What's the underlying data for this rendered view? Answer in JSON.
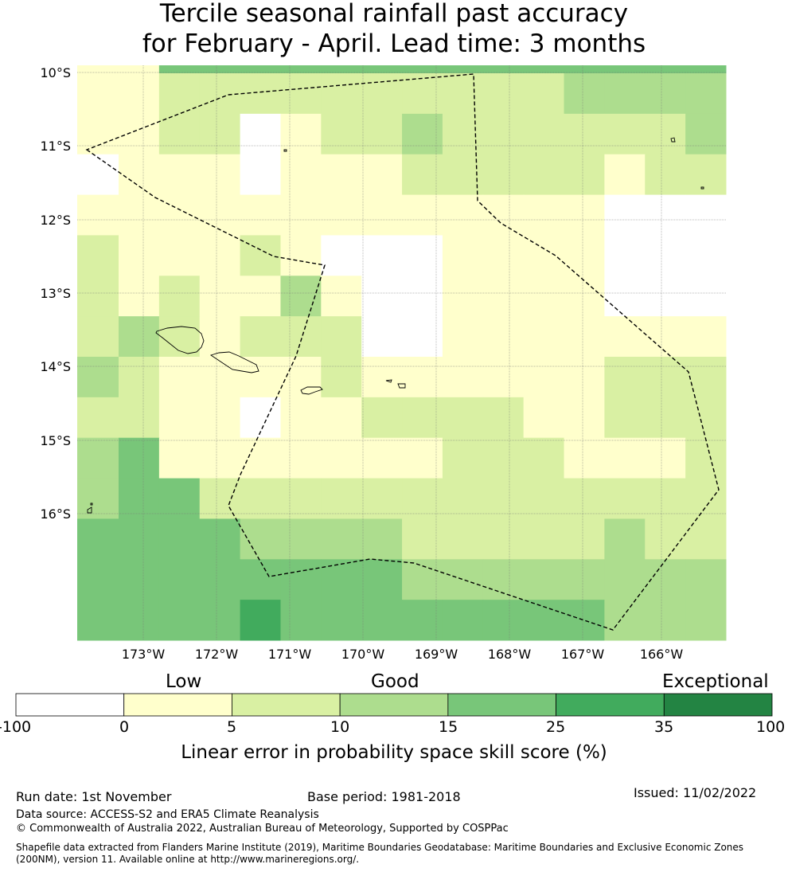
{
  "title": {
    "line1": "Tercile seasonal rainfall past accuracy",
    "line2": "for February - April. Lead time: 3 months"
  },
  "map": {
    "lat_labels": [
      "10°S",
      "11°S",
      "12°S",
      "13°S",
      "14°S",
      "15°S",
      "16°S"
    ],
    "lon_labels": [
      "173°W",
      "172°W",
      "171°W",
      "170°W",
      "169°W",
      "168°W",
      "167°W",
      "166°W"
    ],
    "grid_rows": [
      [
        1,
        1,
        4,
        4,
        4,
        4,
        4,
        4,
        4,
        4,
        4,
        4,
        4,
        4,
        4,
        4
      ],
      [
        1,
        1,
        2,
        2,
        2,
        2,
        2,
        2,
        2,
        2,
        2,
        2,
        3,
        3,
        3,
        3
      ],
      [
        1,
        1,
        2,
        2,
        0,
        1,
        2,
        2,
        3,
        2,
        2,
        2,
        2,
        2,
        2,
        3
      ],
      [
        0,
        1,
        1,
        1,
        0,
        1,
        1,
        1,
        2,
        2,
        2,
        2,
        2,
        1,
        2,
        2
      ],
      [
        1,
        1,
        1,
        1,
        1,
        1,
        1,
        1,
        1,
        1,
        1,
        1,
        1,
        0,
        0,
        0
      ],
      [
        2,
        1,
        1,
        1,
        2,
        1,
        0,
        0,
        0,
        1,
        1,
        1,
        1,
        0,
        0,
        0
      ],
      [
        2,
        1,
        2,
        1,
        1,
        3,
        1,
        0,
        0,
        1,
        1,
        1,
        1,
        0,
        0,
        0
      ],
      [
        2,
        3,
        2,
        1,
        2,
        2,
        2,
        0,
        0,
        1,
        1,
        1,
        1,
        1,
        1,
        1
      ],
      [
        3,
        2,
        1,
        1,
        1,
        1,
        2,
        1,
        1,
        1,
        1,
        1,
        1,
        2,
        2,
        2
      ],
      [
        2,
        2,
        1,
        1,
        0,
        1,
        1,
        2,
        2,
        2,
        2,
        1,
        1,
        2,
        2,
        2
      ],
      [
        3,
        4,
        1,
        1,
        1,
        1,
        1,
        1,
        1,
        2,
        2,
        2,
        1,
        1,
        1,
        2
      ],
      [
        3,
        4,
        4,
        2,
        2,
        2,
        2,
        2,
        2,
        2,
        2,
        2,
        2,
        2,
        2,
        2
      ],
      [
        4,
        4,
        4,
        4,
        3,
        3,
        3,
        3,
        2,
        2,
        2,
        2,
        2,
        3,
        2,
        2
      ],
      [
        4,
        4,
        4,
        4,
        4,
        4,
        4,
        4,
        3,
        3,
        3,
        3,
        3,
        3,
        3,
        3
      ],
      [
        4,
        4,
        4,
        4,
        5,
        4,
        4,
        4,
        4,
        4,
        4,
        4,
        4,
        3,
        3,
        3
      ]
    ]
  },
  "legend": {
    "categories": [
      "Low",
      "Good",
      "Exceptional"
    ],
    "ticks": [
      "-100",
      "0",
      "5",
      "10",
      "15",
      "25",
      "35",
      "100"
    ],
    "colors": [
      "#ffffff",
      "#ffffcc",
      "#d9f0a3",
      "#addd8e",
      "#78c679",
      "#41ab5d",
      "#238443"
    ],
    "label": "Linear error in probability space skill score (%)"
  },
  "footer": {
    "run_date": "Run date: 1st November",
    "base_period": "Base period: 1981-2018",
    "issued": "Issued: 11/02/2022",
    "data_source": "Data source: ACCESS-S2 and ERA5 Climate Reanalysis",
    "copyright": "© Commonwealth of Australia 2022, Australian Bureau of Meteorology, Supported by COSPPac",
    "shapefile": "Shapefile data extracted from Flanders Marine Institute (2019), Maritime Boundaries Geodatabase: Maritime Boundaries and Exclusive Economic Zones (200NM), version 11. Available online at http://www.marineregions.org/."
  }
}
